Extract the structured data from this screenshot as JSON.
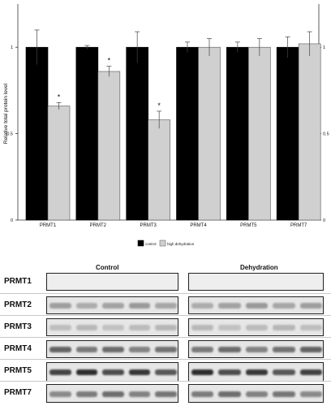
{
  "chart_data": {
    "type": "bar",
    "ylabel": "Relative total protein level",
    "ylim": [
      0,
      1.25
    ],
    "yticks_left": [
      "0",
      "0.5",
      "1"
    ],
    "yticks_right": [
      "0",
      "0.5",
      "1"
    ],
    "categories": [
      "PRMT1",
      "PRMT2",
      "PRMT3",
      "PRMT4",
      "PRMT5",
      "PRMT7"
    ],
    "series": [
      {
        "name": "control",
        "color": "#000000",
        "values": [
          1.0,
          1.0,
          1.0,
          1.0,
          1.0,
          1.0
        ],
        "errors": [
          0.1,
          0.01,
          0.09,
          0.03,
          0.03,
          0.06
        ]
      },
      {
        "name": "high dehydration",
        "color": "#d0d0d0",
        "values": [
          0.66,
          0.86,
          0.58,
          1.0,
          1.0,
          1.02
        ],
        "errors": [
          0.02,
          0.03,
          0.05,
          0.05,
          0.05,
          0.07
        ]
      }
    ],
    "significance": [
      "*",
      "*",
      "*",
      "",
      "",
      ""
    ],
    "legend_position": "bottom"
  },
  "blot": {
    "conditions": [
      "Control",
      "Dehydration"
    ],
    "rows": [
      "PRMT1",
      "PRMT2",
      "PRMT3",
      "PRMT4",
      "PRMT5",
      "PRMT7"
    ]
  }
}
